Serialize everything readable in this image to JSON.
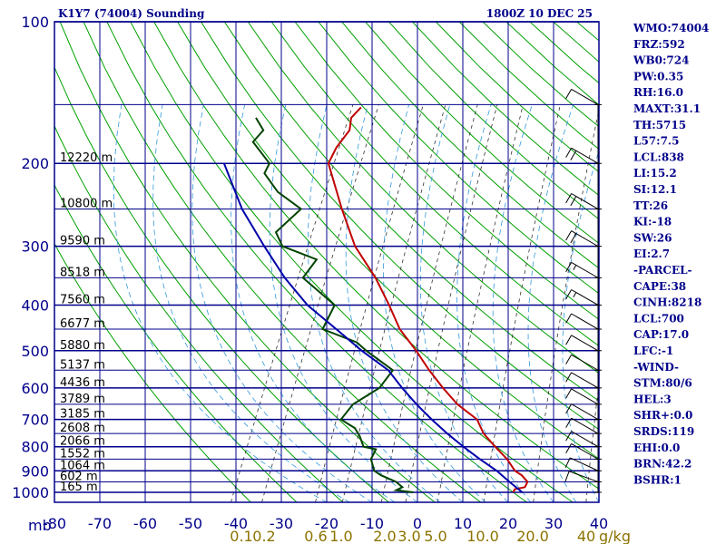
{
  "header": {
    "left_title": "K1Y7 (74004) Sounding",
    "right_title": "1800Z 10 DEC 25"
  },
  "indices": [
    "WMO:74004",
    "FRZ:592",
    "WB0:724",
    "PW:0.35",
    "RH:16.0",
    "MAXT:31.1",
    "TH:5715",
    "L57:7.5",
    "LCL:838",
    "LI:15.2",
    "SI:12.1",
    "TT:26",
    "KI:-18",
    "SW:26",
    "EI:2.7",
    "-PARCEL-",
    "CAPE:38",
    "CINH:8218",
    "LCL:700",
    "CAP:17.0",
    "LFC:-1",
    "-WIND-",
    "STM:80/6",
    "HEL:3",
    "SHR+:0.0",
    "SRDS:119",
    "EHI:0.0",
    "BRN:42.2",
    "BSHR:1"
  ],
  "chart_data": {
    "type": "skew-t",
    "title": "K1Y7 (74004) Sounding",
    "pressure_unit_label": "mb",
    "mixing_ratio_unit_label": "g/kg",
    "pressure_ticks": [
      "100",
      "200",
      "300",
      "400",
      "500",
      "600",
      "700",
      "800",
      "900",
      "1000"
    ],
    "temperature_ticks": [
      "-80",
      "-70",
      "-60",
      "-50",
      "-40",
      "-30",
      "-20",
      "-10",
      "0",
      "10",
      "20",
      "30",
      "40"
    ],
    "mixing_ratio_ticks": [
      "0.1",
      "0.2",
      "0.6",
      "1.0",
      "2.0",
      "3.0",
      "5.0",
      "10.0",
      "20.0",
      "40"
    ],
    "height_labels": [
      {
        "p": 200,
        "label": "12220 m"
      },
      {
        "p": 250,
        "label": "10800 m"
      },
      {
        "p": 300,
        "label": "9590 m"
      },
      {
        "p": 350,
        "label": "8518 m"
      },
      {
        "p": 400,
        "label": "7560 m"
      },
      {
        "p": 450,
        "label": "6677 m"
      },
      {
        "p": 500,
        "label": "5880 m"
      },
      {
        "p": 550,
        "label": "5137 m"
      },
      {
        "p": 600,
        "label": "4436 m"
      },
      {
        "p": 650,
        "label": "3789 m"
      },
      {
        "p": 700,
        "label": "3185 m"
      },
      {
        "p": 750,
        "label": "2608 m"
      },
      {
        "p": 800,
        "label": "2066 m"
      },
      {
        "p": 850,
        "label": "1552 m"
      },
      {
        "p": 900,
        "label": "1064 m"
      },
      {
        "p": 950,
        "label": "602 m"
      },
      {
        "p": 1000,
        "label": "165 m"
      }
    ],
    "series": [
      {
        "name": "",
        "color": "#c00000",
        "points": [
          {
            "p": 1000,
            "t": 20
          },
          {
            "p": 985,
            "t": 20
          },
          {
            "p": 975,
            "t": 22
          },
          {
            "p": 950,
            "t": 22
          },
          {
            "p": 920,
            "t": 20
          },
          {
            "p": 900,
            "t": 18
          },
          {
            "p": 850,
            "t": 15
          },
          {
            "p": 800,
            "t": 11
          },
          {
            "p": 750,
            "t": 7
          },
          {
            "p": 700,
            "t": 4
          },
          {
            "p": 650,
            "t": -2
          },
          {
            "p": 600,
            "t": -7
          },
          {
            "p": 550,
            "t": -12
          },
          {
            "p": 500,
            "t": -17
          },
          {
            "p": 450,
            "t": -23
          },
          {
            "p": 400,
            "t": -28
          },
          {
            "p": 350,
            "t": -34
          },
          {
            "p": 300,
            "t": -42
          },
          {
            "p": 250,
            "t": -49
          },
          {
            "p": 200,
            "t": -57
          },
          {
            "p": 185,
            "t": -57
          },
          {
            "p": 170,
            "t": -56
          },
          {
            "p": 160,
            "t": -57
          },
          {
            "p": 152,
            "t": -56
          }
        ]
      },
      {
        "name": "",
        "color": "#004400",
        "points": [
          {
            "p": 1000,
            "t": -2
          },
          {
            "p": 990,
            "t": -6
          },
          {
            "p": 975,
            "t": -5
          },
          {
            "p": 950,
            "t": -7
          },
          {
            "p": 920,
            "t": -11
          },
          {
            "p": 900,
            "t": -13
          },
          {
            "p": 850,
            "t": -15
          },
          {
            "p": 810,
            "t": -15
          },
          {
            "p": 800,
            "t": -18
          },
          {
            "p": 760,
            "t": -20
          },
          {
            "p": 730,
            "t": -22
          },
          {
            "p": 700,
            "t": -26
          },
          {
            "p": 650,
            "t": -25
          },
          {
            "p": 600,
            "t": -21
          },
          {
            "p": 550,
            "t": -20
          },
          {
            "p": 500,
            "t": -28
          },
          {
            "p": 480,
            "t": -31
          },
          {
            "p": 450,
            "t": -40
          },
          {
            "p": 400,
            "t": -40
          },
          {
            "p": 350,
            "t": -50
          },
          {
            "p": 320,
            "t": -49
          },
          {
            "p": 300,
            "t": -58
          },
          {
            "p": 280,
            "t": -61
          },
          {
            "p": 250,
            "t": -58
          },
          {
            "p": 230,
            "t": -65
          },
          {
            "p": 210,
            "t": -70
          },
          {
            "p": 200,
            "t": -70
          },
          {
            "p": 180,
            "t": -76
          },
          {
            "p": 170,
            "t": -75
          },
          {
            "p": 160,
            "t": -78
          }
        ]
      },
      {
        "name": "",
        "color": "#0000aa",
        "points": [
          {
            "p": 1000,
            "t": 22
          },
          {
            "p": 950,
            "t": 18
          },
          {
            "p": 900,
            "t": 14
          },
          {
            "p": 850,
            "t": 9
          },
          {
            "p": 800,
            "t": 4
          },
          {
            "p": 750,
            "t": -1
          },
          {
            "p": 700,
            "t": -6
          },
          {
            "p": 650,
            "t": -11
          },
          {
            "p": 600,
            "t": -16
          },
          {
            "p": 550,
            "t": -21
          },
          {
            "p": 500,
            "t": -29
          },
          {
            "p": 450,
            "t": -37
          },
          {
            "p": 400,
            "t": -46
          },
          {
            "p": 350,
            "t": -54
          },
          {
            "p": 300,
            "t": -62
          },
          {
            "p": 250,
            "t": -71
          },
          {
            "p": 200,
            "t": -80
          }
        ]
      }
    ],
    "wind_barbs": [
      {
        "p": 1000,
        "dir": 290,
        "kt": 0
      },
      {
        "p": 950,
        "dir": 290,
        "kt": 10
      },
      {
        "p": 900,
        "dir": 295,
        "kt": 10
      },
      {
        "p": 850,
        "dir": 300,
        "kt": 10
      },
      {
        "p": 800,
        "dir": 300,
        "kt": 10
      },
      {
        "p": 750,
        "dir": 300,
        "kt": 10
      },
      {
        "p": 700,
        "dir": 300,
        "kt": 10
      },
      {
        "p": 650,
        "dir": 300,
        "kt": 10
      },
      {
        "p": 600,
        "dir": 300,
        "kt": 10
      },
      {
        "p": 550,
        "dir": 300,
        "kt": 10
      },
      {
        "p": 500,
        "dir": 300,
        "kt": 10
      },
      {
        "p": 450,
        "dir": 300,
        "kt": 10
      },
      {
        "p": 400,
        "dir": 300,
        "kt": 15
      },
      {
        "p": 350,
        "dir": 300,
        "kt": 15
      },
      {
        "p": 300,
        "dir": 300,
        "kt": 20
      },
      {
        "p": 250,
        "dir": 300,
        "kt": 20
      },
      {
        "p": 200,
        "dir": 300,
        "kt": 20
      },
      {
        "p": 150,
        "dir": 300,
        "kt": 10
      }
    ]
  }
}
